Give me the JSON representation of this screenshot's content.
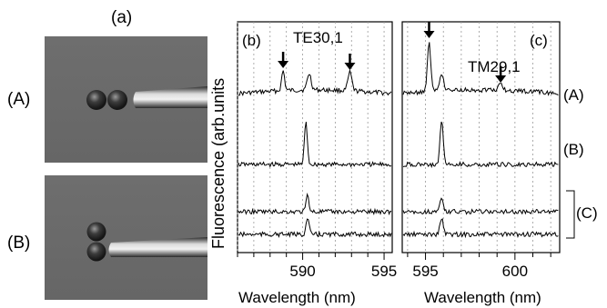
{
  "panel_labels": {
    "a": "(a)",
    "b": "(b)",
    "c": "(c)"
  },
  "row_labels": {
    "A_left": "(A)",
    "B_left": "(B)",
    "A_right": "(A)",
    "B_right": "(B)",
    "C_right": "(C)"
  },
  "annotations": {
    "te": "TE30,1",
    "tm": "TM29,1"
  },
  "y_label": "Fluorescence (arb.units",
  "chart_data": [
    {
      "type": "line",
      "panel": "(b)",
      "xlabel": "Wavelength (nm)",
      "xlim": [
        586,
        595.5
      ],
      "xticks": [
        590,
        595
      ],
      "grid": true,
      "series": [
        {
          "label": "(A)",
          "peaks": [
            588.8,
            590.4,
            592.9
          ]
        },
        {
          "label": "(B)",
          "peaks": [
            590.2
          ]
        },
        {
          "label": "(C)",
          "peaks": [
            590.3
          ]
        },
        {
          "label": "(C)",
          "peaks": [
            590.3
          ]
        }
      ]
    },
    {
      "type": "line",
      "panel": "(c)",
      "xlabel": "Wavelength (nm)",
      "xlim": [
        593.7,
        602.5
      ],
      "xticks": [
        595,
        600
      ],
      "grid": true,
      "series": [
        {
          "label": "(A)",
          "peaks": [
            595.2,
            595.9,
            599.2
          ]
        },
        {
          "label": "(B)",
          "peaks": [
            595.9
          ]
        },
        {
          "label": "(C)",
          "peaks": [
            595.9
          ]
        },
        {
          "label": "(C)",
          "peaks": [
            595.9
          ]
        }
      ]
    }
  ]
}
